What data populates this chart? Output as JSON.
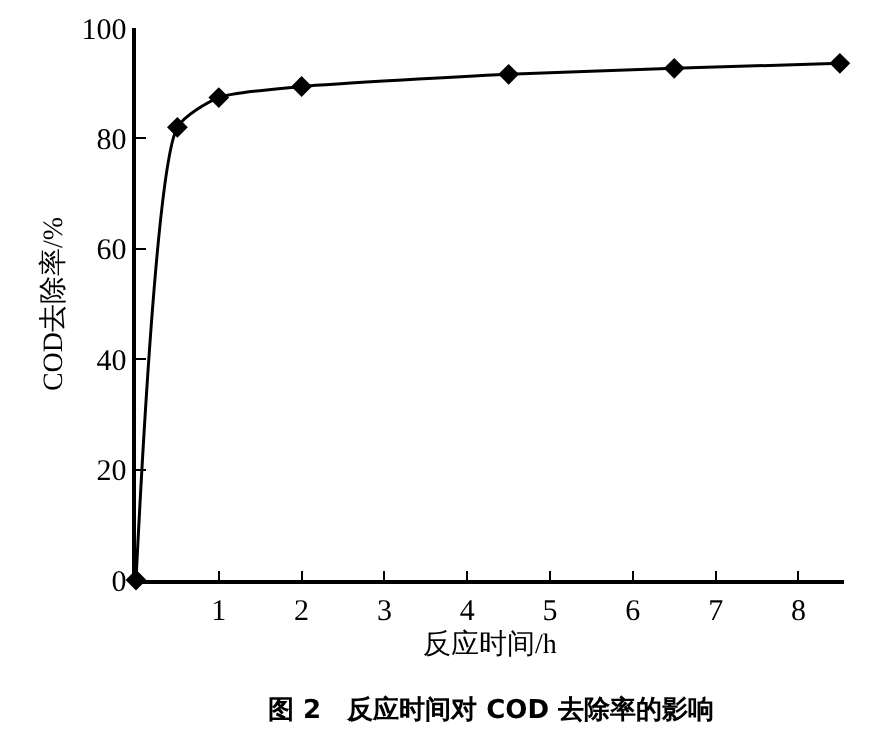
{
  "chart_data": {
    "type": "line",
    "xlabel": "反应时间/h",
    "ylabel": "COD去除率/%",
    "annotations": [
      "图 2　反应时间对 COD 去除率的影响"
    ],
    "x": [
      0,
      0.5,
      1,
      2,
      4.5,
      6.5,
      8.5
    ],
    "series": [
      {
        "color": "#000000",
        "values": [
          0,
          82,
          87.4,
          89.4,
          91.6,
          92.7,
          93.6
        ]
      }
    ],
    "xlim": [
      0,
      8.55
    ],
    "xticks": [
      1,
      2,
      3,
      4,
      5,
      6,
      7,
      8
    ],
    "ylim": [
      0,
      100
    ],
    "yticks": [
      0,
      20,
      40,
      60,
      80,
      100
    ],
    "grid": false,
    "legend": false,
    "marker": "diamond",
    "line_style": "solid"
  }
}
